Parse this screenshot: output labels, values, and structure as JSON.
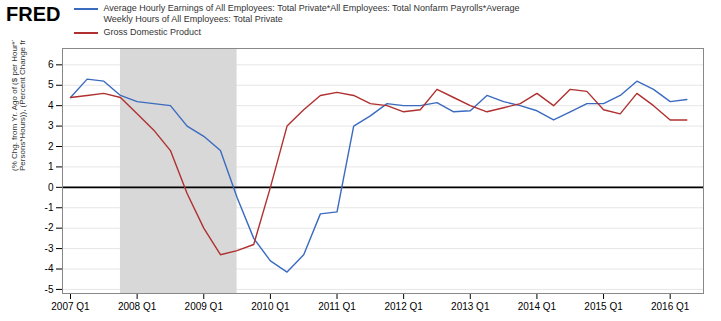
{
  "chart_data": {
    "type": "line",
    "title": "FRED",
    "ylabel": "(% Chg. from Yr. Ago of ($ per Hour*Thous. of\nPersons*Hours)), (Percent Change from Year Ago)",
    "x": [
      2007.0,
      2007.25,
      2007.5,
      2007.75,
      2008.0,
      2008.25,
      2008.5,
      2008.75,
      2009.0,
      2009.25,
      2009.5,
      2009.75,
      2010.0,
      2010.25,
      2010.5,
      2010.75,
      2011.0,
      2011.25,
      2011.5,
      2011.75,
      2012.0,
      2012.25,
      2012.5,
      2012.75,
      2013.0,
      2013.25,
      2013.5,
      2013.75,
      2014.0,
      2014.25,
      2014.5,
      2014.75,
      2015.0,
      2015.25,
      2015.5,
      2015.75,
      2016.0,
      2016.25
    ],
    "series": [
      {
        "name": "Average Hourly Earnings of All Employees: Total Private*All Employees: Total Nonfarm Payrolls*Average\nWeekly Hours of All Employees: Total Private",
        "color": "#3a6bbf",
        "values": [
          4.4,
          5.3,
          5.2,
          4.5,
          4.2,
          4.1,
          4.0,
          3.0,
          2.5,
          1.8,
          -0.5,
          -2.5,
          -3.6,
          -4.15,
          -3.3,
          -1.3,
          -1.2,
          3.0,
          3.5,
          4.1,
          4.0,
          4.0,
          4.15,
          3.7,
          3.75,
          4.5,
          4.2,
          4.0,
          3.75,
          3.3,
          3.7,
          4.1,
          4.1,
          4.5,
          5.2,
          4.8,
          4.2,
          4.3
        ]
      },
      {
        "name": "Gross Domestic Product",
        "color": "#b03030",
        "values": [
          4.4,
          4.5,
          4.6,
          4.4,
          3.6,
          2.8,
          1.8,
          -0.3,
          -2.0,
          -3.3,
          -3.1,
          -2.8,
          0.0,
          3.0,
          3.8,
          4.5,
          4.65,
          4.5,
          4.1,
          4.0,
          3.7,
          3.8,
          4.8,
          4.4,
          4.0,
          3.7,
          3.9,
          4.1,
          4.6,
          4.0,
          4.8,
          4.7,
          3.8,
          3.6,
          4.6,
          4.0,
          3.3,
          3.3
        ]
      }
    ],
    "xlim": [
      2006.88,
      2016.5
    ],
    "xticks": [
      {
        "value": 2007.0,
        "label": "2007 Q1"
      },
      {
        "value": 2008.0,
        "label": "2008 Q1"
      },
      {
        "value": 2009.0,
        "label": "2009 Q1"
      },
      {
        "value": 2010.0,
        "label": "2010 Q1"
      },
      {
        "value": 2011.0,
        "label": "2011 Q1"
      },
      {
        "value": 2012.0,
        "label": "2012 Q1"
      },
      {
        "value": 2013.0,
        "label": "2013 Q1"
      },
      {
        "value": 2014.0,
        "label": "2014 Q1"
      },
      {
        "value": 2015.0,
        "label": "2015 Q1"
      },
      {
        "value": 2016.0,
        "label": "2016 Q1"
      }
    ],
    "ylim": [
      -5.2,
      6.8
    ],
    "yticks": [
      -5,
      -4,
      -3,
      -2,
      -1,
      0,
      1,
      2,
      3,
      4,
      5,
      6
    ],
    "grid": true,
    "legend": "top",
    "shaded_x_ranges": [
      {
        "x0": 2007.75,
        "x1": 2009.5,
        "color": "#d8d8d8"
      }
    ],
    "hlines": [
      0
    ]
  }
}
